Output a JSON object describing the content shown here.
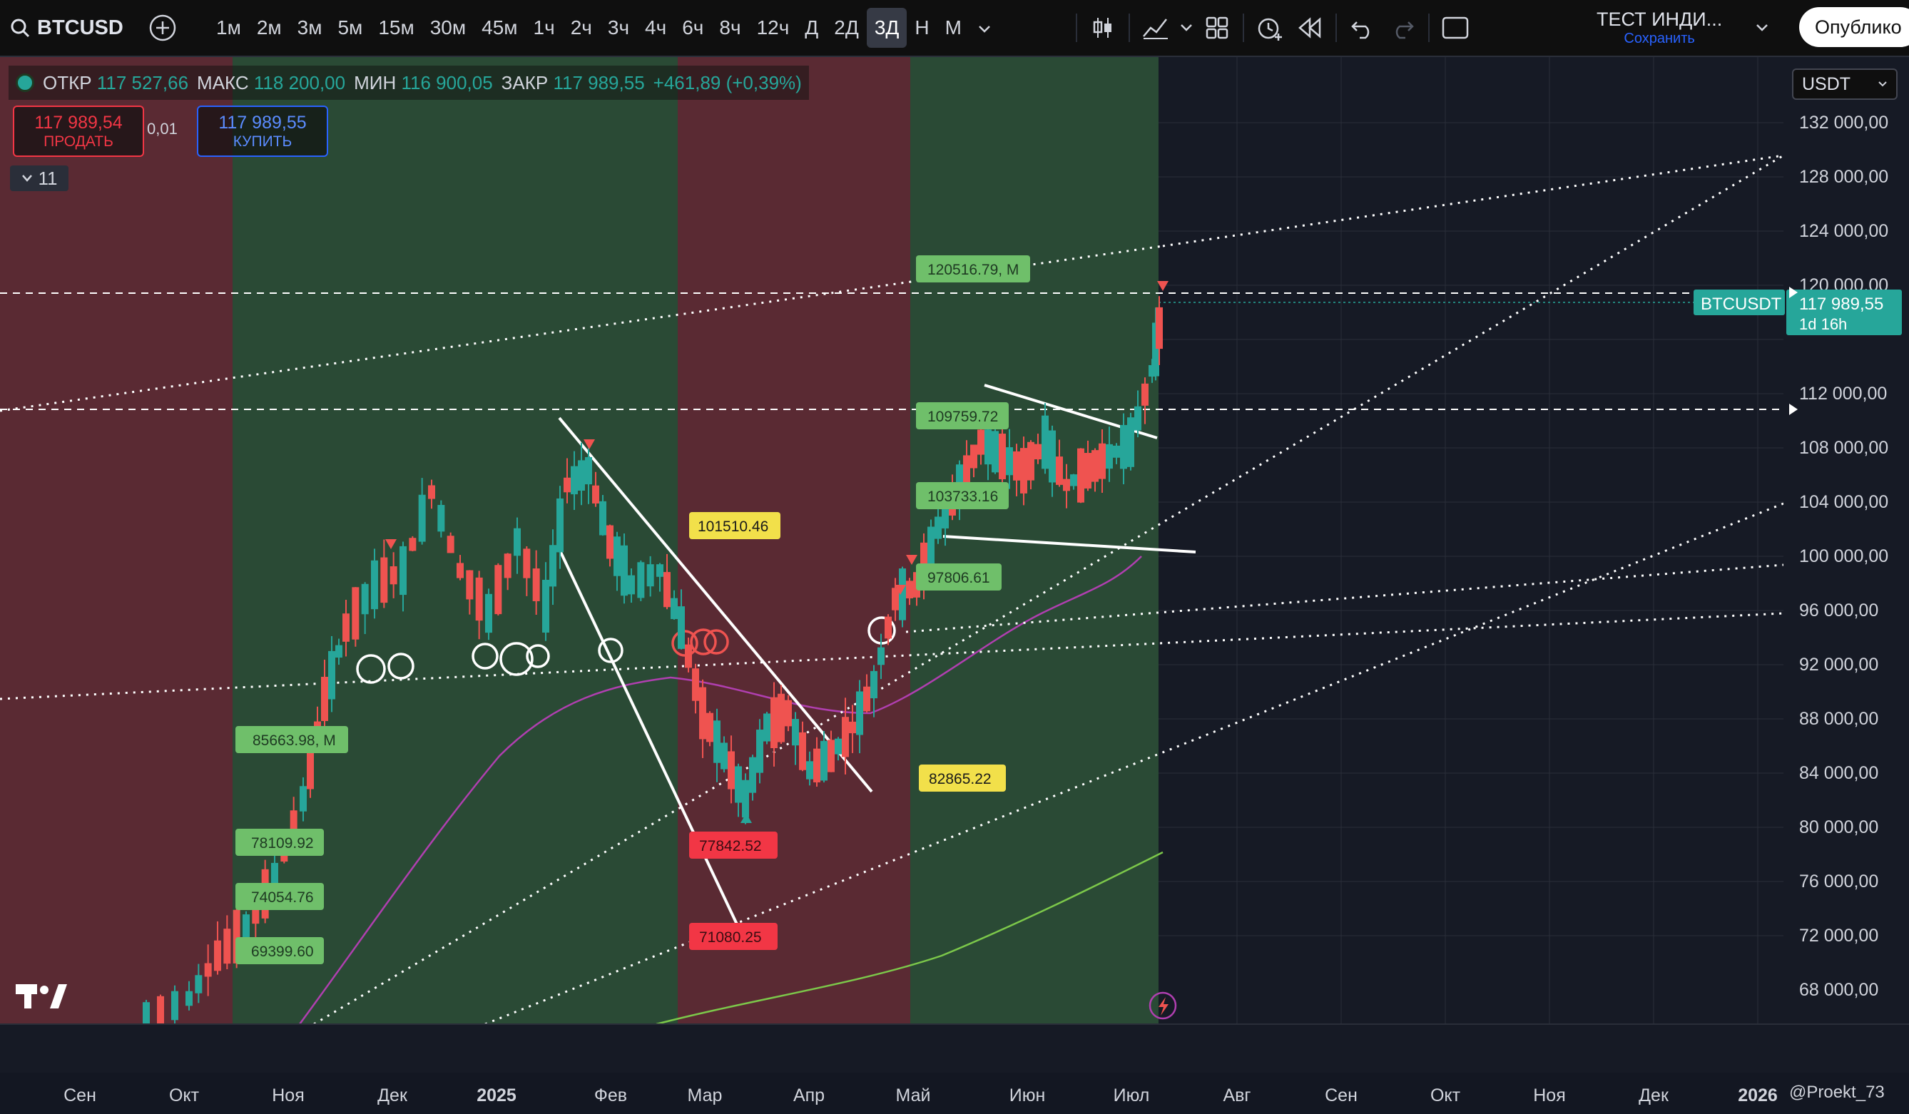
{
  "toolbar": {
    "symbol": "BTCUSD",
    "timeframes": [
      "1м",
      "2м",
      "3м",
      "5м",
      "15м",
      "30м",
      "45м",
      "1ч",
      "2ч",
      "3ч",
      "4ч",
      "6ч",
      "8ч",
      "12ч",
      "Д",
      "2Д",
      "3Д",
      "Н",
      "М"
    ],
    "active_timeframe": "3Д",
    "layout_title": "ТЕСТ ИНДИ...",
    "layout_status": "Сохранить",
    "publish_label": "Опублико"
  },
  "legend": {
    "open_label": "ОТКР",
    "open": "117 527,66",
    "high_label": "МАКС",
    "high": "118 200,00",
    "low_label": "МИН",
    "low": "116 900,05",
    "close_label": "ЗАКР",
    "close": "117 989,55",
    "change": "+461,89 (+0,39%)"
  },
  "trade": {
    "sell_price": "117 989,54",
    "sell_label": "ПРОДАТЬ",
    "spread": "0,01",
    "buy_price": "117 989,55",
    "buy_label": "КУПИТЬ",
    "indicators_count": "11"
  },
  "currency": "USDT",
  "price_axis": {
    "ticks": [
      "132 000,00",
      "128 000,00",
      "124 000,00",
      "120 000,00",
      "112 000,00",
      "108 000,00",
      "104 000,00",
      "100 000,00",
      "96 000,00",
      "92 000,00",
      "88 000,00",
      "84 000,00",
      "80 000,00",
      "76 000,00",
      "72 000,00",
      "68 000,00"
    ],
    "symbol_tag": "BTCUSDT",
    "last_price": "117 989,55",
    "countdown": "1d 16h"
  },
  "time_axis": [
    "Сен",
    "Окт",
    "Ноя",
    "Дек",
    "2025",
    "Фев",
    "Мар",
    "Апр",
    "Май",
    "Июн",
    "Июл",
    "Авг",
    "Сен",
    "Окт",
    "Ноя",
    "Дек",
    "2026"
  ],
  "watermark": "@Proekt_73",
  "labels": {
    "l1": "120516.79, M",
    "l2": "101510.46",
    "l3": "109759.72",
    "l4": "103733.16",
    "l5": "97806.61",
    "l6": "85663.98, M",
    "l7": "82865.22",
    "l8": "78109.92",
    "l9": "77842.52",
    "l10": "74054.76",
    "l11": "71080.25",
    "l12": "69399.60"
  },
  "colors": {
    "bg": "#161a25",
    "up": "#26a69a",
    "down": "#ef5350",
    "zone_green": "#2a4a35",
    "zone_red": "#5a2a33"
  }
}
